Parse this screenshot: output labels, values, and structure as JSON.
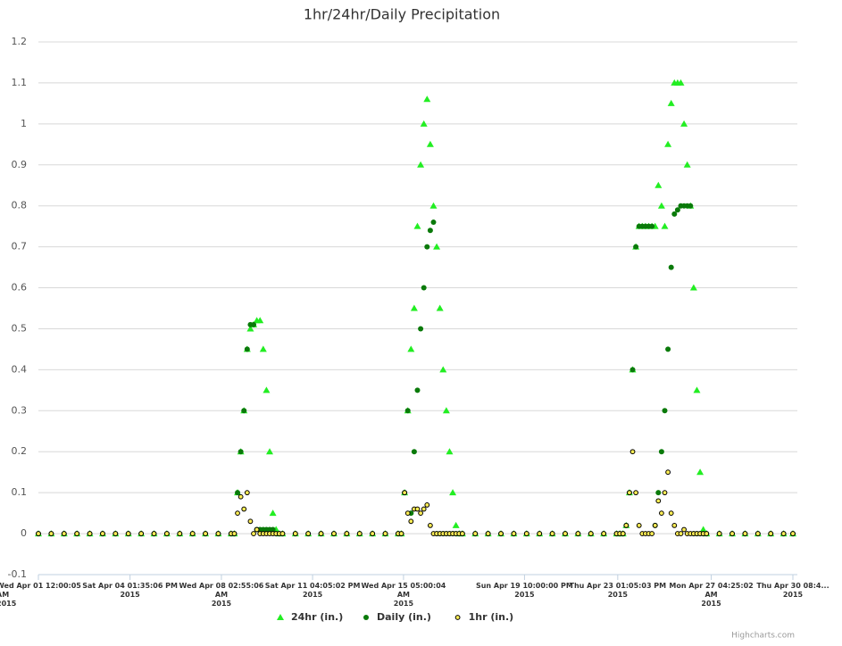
{
  "chart_data": {
    "type": "scatter",
    "title": "1hr/24hr/Daily Precipitation",
    "credits": "Highcharts.com",
    "x": [
      "2015-04-01T00:00:05",
      "2015-04-01T12:00:00",
      "2015-04-02T00:00:00",
      "2015-04-02T12:00:00",
      "2015-04-03T00:00:00",
      "2015-04-03T12:00:00",
      "2015-04-04T00:00:00",
      "2015-04-04T12:00:00",
      "2015-04-05T00:00:00",
      "2015-04-05T12:00:00",
      "2015-04-06T00:00:00",
      "2015-04-06T12:00:00",
      "2015-04-07T00:00:00",
      "2015-04-07T12:00:00",
      "2015-04-08T00:00:00",
      "2015-04-08T12:00:00",
      "2015-04-08T15:00:00",
      "2015-04-08T18:00:00",
      "2015-04-08T21:00:00",
      "2015-04-09T00:00:00",
      "2015-04-09T03:00:00",
      "2015-04-09T06:00:00",
      "2015-04-09T09:00:00",
      "2015-04-09T12:00:00",
      "2015-04-09T15:00:00",
      "2015-04-09T18:00:00",
      "2015-04-09T21:00:00",
      "2015-04-10T00:00:00",
      "2015-04-10T03:00:00",
      "2015-04-10T06:00:00",
      "2015-04-10T09:00:00",
      "2015-04-10T12:00:00",
      "2015-04-11T00:00:00",
      "2015-04-11T12:00:00",
      "2015-04-12T00:00:00",
      "2015-04-12T12:00:00",
      "2015-04-13T00:00:00",
      "2015-04-13T12:00:00",
      "2015-04-14T00:00:00",
      "2015-04-14T12:00:00",
      "2015-04-15T00:00:00",
      "2015-04-15T03:00:00",
      "2015-04-15T06:00:00",
      "2015-04-15T09:00:00",
      "2015-04-15T12:00:00",
      "2015-04-15T15:00:00",
      "2015-04-15T18:00:00",
      "2015-04-15T21:00:00",
      "2015-04-16T00:00:00",
      "2015-04-16T03:00:00",
      "2015-04-16T06:00:00",
      "2015-04-16T09:00:00",
      "2015-04-16T12:00:00",
      "2015-04-16T15:00:00",
      "2015-04-16T18:00:00",
      "2015-04-16T21:00:00",
      "2015-04-17T00:00:00",
      "2015-04-17T03:00:00",
      "2015-04-17T06:00:00",
      "2015-04-17T09:00:00",
      "2015-04-17T12:00:00",
      "2015-04-18T00:00:00",
      "2015-04-18T12:00:00",
      "2015-04-19T00:00:00",
      "2015-04-19T12:00:00",
      "2015-04-20T00:00:00",
      "2015-04-20T12:00:00",
      "2015-04-21T00:00:00",
      "2015-04-21T12:00:00",
      "2015-04-22T00:00:00",
      "2015-04-22T12:00:00",
      "2015-04-23T00:00:00",
      "2015-04-23T12:00:00",
      "2015-04-23T15:00:00",
      "2015-04-23T18:00:00",
      "2015-04-23T21:00:00",
      "2015-04-24T00:00:00",
      "2015-04-24T03:00:00",
      "2015-04-24T06:00:00",
      "2015-04-24T09:00:00",
      "2015-04-24T12:00:00",
      "2015-04-24T15:00:00",
      "2015-04-24T18:00:00",
      "2015-04-24T21:00:00",
      "2015-04-25T00:00:00",
      "2015-04-25T03:00:00",
      "2015-04-25T06:00:00",
      "2015-04-25T09:00:00",
      "2015-04-25T12:00:00",
      "2015-04-25T15:00:00",
      "2015-04-25T18:00:00",
      "2015-04-25T21:00:00",
      "2015-04-26T00:00:00",
      "2015-04-26T03:00:00",
      "2015-04-26T06:00:00",
      "2015-04-26T09:00:00",
      "2015-04-26T12:00:00",
      "2015-04-26T15:00:00",
      "2015-04-26T18:00:00",
      "2015-04-26T21:00:00",
      "2015-04-27T00:00:00",
      "2015-04-27T12:00:00",
      "2015-04-28T00:00:00",
      "2015-04-28T12:00:00",
      "2015-04-29T00:00:00",
      "2015-04-29T12:00:00",
      "2015-04-30T00:00:00",
      "2015-04-30T08:40:00"
    ],
    "series": [
      {
        "name": "24hr (in.)",
        "color": "#22ee22",
        "marker": "triangle",
        "values": [
          0,
          0,
          0,
          0,
          0,
          0,
          0,
          0,
          0,
          0,
          0,
          0,
          0,
          0,
          0,
          0,
          0,
          0.1,
          0.2,
          0.3,
          0.45,
          0.5,
          0.51,
          0.52,
          0.52,
          0.45,
          0.35,
          0.2,
          0.05,
          0.01,
          0,
          0,
          0,
          0,
          0,
          0,
          0,
          0,
          0,
          0,
          0,
          0,
          0.1,
          0.3,
          0.45,
          0.55,
          0.75,
          0.9,
          1.0,
          1.06,
          0.95,
          0.8,
          0.7,
          0.55,
          0.4,
          0.3,
          0.2,
          0.1,
          0.02,
          0,
          0,
          0,
          0,
          0,
          0,
          0,
          0,
          0,
          0,
          0,
          0,
          0,
          0,
          0,
          0,
          0.02,
          0.1,
          0.4,
          0.7,
          0.75,
          0.75,
          0.75,
          0.75,
          0.75,
          0.75,
          0.85,
          0.8,
          0.75,
          0.95,
          1.05,
          1.1,
          1.1,
          1.1,
          1.0,
          0.9,
          0.8,
          0.6,
          0.35,
          0.15,
          0.01,
          0,
          0,
          0,
          0,
          0,
          0,
          0,
          0
        ]
      },
      {
        "name": "Daily (in.)",
        "color": "#0a7a0a",
        "marker": "circle",
        "values": [
          0,
          0,
          0,
          0,
          0,
          0,
          0,
          0,
          0,
          0,
          0,
          0,
          0,
          0,
          0,
          0,
          0,
          0.1,
          0.2,
          0.3,
          0.45,
          0.51,
          0.51,
          0.01,
          0.01,
          0.01,
          0.01,
          0.01,
          0.01,
          0,
          0,
          0,
          0,
          0,
          0,
          0,
          0,
          0,
          0,
          0,
          0,
          0,
          0.1,
          0.3,
          0.05,
          0.2,
          0.35,
          0.5,
          0.6,
          0.7,
          0.74,
          0.76,
          0,
          0,
          0,
          0,
          0,
          0,
          0,
          0,
          0,
          0,
          0,
          0,
          0,
          0,
          0,
          0,
          0,
          0,
          0,
          0,
          0,
          0,
          0,
          0.02,
          0.1,
          0.4,
          0.7,
          0.75,
          0.75,
          0.75,
          0.75,
          0.75,
          0.02,
          0.1,
          0.2,
          0.3,
          0.45,
          0.65,
          0.78,
          0.79,
          0.8,
          0.8,
          0.8,
          0.8,
          0,
          0,
          0,
          0,
          0,
          0,
          0,
          0,
          0,
          0,
          0,
          0
        ]
      },
      {
        "name": "1hr (in.)",
        "color": "#ffee55",
        "marker": "circle-outline",
        "values": [
          0,
          0,
          0,
          0,
          0,
          0,
          0,
          0,
          0,
          0,
          0,
          0,
          0,
          0,
          0,
          0,
          0,
          0.05,
          0.09,
          0.06,
          0.1,
          0.03,
          0,
          0.01,
          0,
          0,
          0,
          0,
          0,
          0,
          0,
          0,
          0,
          0,
          0,
          0,
          0,
          0,
          0,
          0,
          0,
          0,
          0.1,
          0.05,
          0.03,
          0.06,
          0.06,
          0.05,
          0.06,
          0.07,
          0.02,
          0,
          0,
          0,
          0,
          0,
          0,
          0,
          0,
          0,
          0,
          0,
          0,
          0,
          0,
          0,
          0,
          0,
          0,
          0,
          0,
          0,
          0,
          0,
          0,
          0.02,
          0.1,
          0.2,
          0.1,
          0.02,
          0,
          0,
          0,
          0,
          0.02,
          0.08,
          0.05,
          0.1,
          0.15,
          0.05,
          0.02,
          0,
          0,
          0.01,
          0,
          0,
          0,
          0,
          0,
          0,
          0,
          0,
          0,
          0,
          0,
          0,
          0,
          0
        ]
      }
    ],
    "xlim": [
      "2015-04-01T00:00:05",
      "2015-04-30T08:40:00"
    ],
    "xticks": [
      {
        "value": "2015-04-01T00:00:05",
        "label": "Wed Apr 01 12:00:05 AM\n2015"
      },
      {
        "value": "2015-04-04T13:35:06",
        "label": "Sat Apr 04 01:35:06 PM\n2015"
      },
      {
        "value": "2015-04-08T02:55:06",
        "label": "Wed Apr 08 02:55:06 AM\n2015"
      },
      {
        "value": "2015-04-11T16:05:02",
        "label": "Sat Apr 11 04:05:02 PM\n2015"
      },
      {
        "value": "2015-04-15T05:00:04",
        "label": "Wed Apr 15 05:00:04 AM\n2015"
      },
      {
        "value": "2015-04-19T22:00:00",
        "label": "Sun Apr 19 10:00:00 PM\n2015"
      },
      {
        "value": "2015-04-23T13:05:03",
        "label": "Thu Apr 23 01:05:03 PM\n2015"
      },
      {
        "value": "2015-04-27T04:25:02",
        "label": "Mon Apr 27 04:25:02 AM\n2015"
      },
      {
        "value": "2015-04-30T08:40:00",
        "label": "Thu Apr 30 08:4...\n2015"
      }
    ],
    "ylim": [
      -0.1,
      1.2
    ],
    "yticks": [
      -0.1,
      0,
      0.1,
      0.2,
      0.3,
      0.4,
      0.5,
      0.6,
      0.7,
      0.8,
      0.9,
      1,
      1.1,
      1.2
    ],
    "grid": true,
    "legend": "bottom"
  }
}
